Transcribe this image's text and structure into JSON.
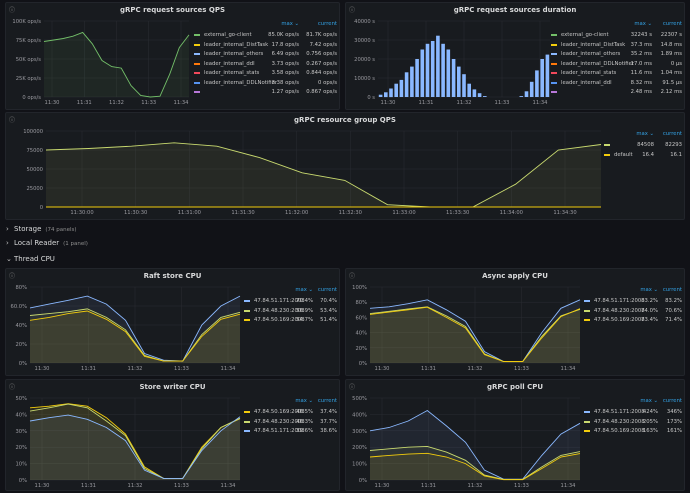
{
  "panels": {
    "qps": {
      "title": "gRPC request sources QPS",
      "legend_headers": {
        "max": "max ⌄",
        "current": "current"
      },
      "legend": [
        {
          "name": "external_go-client",
          "max": "85.0K ops/s",
          "current": "81.7K ops/s",
          "color": "#73bf69"
        },
        {
          "name": "leader_internal_DistTask",
          "max": "17.8 ops/s",
          "current": "7.42 ops/s",
          "color": "#f2cc0c"
        },
        {
          "name": "leader_internal_others",
          "max": "6.49 ops/s",
          "current": "0.756 ops/s",
          "color": "#8ab8ff"
        },
        {
          "name": "leader_internal_ddl",
          "max": "3.73 ops/s",
          "current": "0.267 ops/s",
          "color": "#ff780a"
        },
        {
          "name": "leader_internal_stats",
          "max": "3.58 ops/s",
          "current": "0.844 ops/s",
          "color": "#f2495c"
        },
        {
          "name": "leader_internal_DDLNotifier",
          "max": "3.38 ops/s",
          "current": "0 ops/s",
          "color": "#5794f2"
        },
        {
          "name": "",
          "max": "1.27 ops/s",
          "current": "0.867 ops/s",
          "color": "#b877d9"
        }
      ],
      "yticks": [
        "100K ops/s",
        "75K ops/s",
        "50K ops/s",
        "25K ops/s",
        "0 ops/s"
      ],
      "xticks": [
        "11:30",
        "11:31",
        "11:32",
        "11:33",
        "11:34"
      ]
    },
    "duration": {
      "title": "gRPC request sources duration",
      "legend_headers": {
        "max": "max ⌄",
        "current": "current"
      },
      "legend": [
        {
          "name": "external_go-client",
          "max": "32243 s",
          "current": "22307 s",
          "color": "#73bf69"
        },
        {
          "name": "leader_internal_DistTask",
          "max": "37.3 ms",
          "current": "14.8 ms",
          "color": "#f2cc0c"
        },
        {
          "name": "leader_internal_others",
          "max": "35.2 ms",
          "current": "1.89 ms",
          "color": "#8ab8ff"
        },
        {
          "name": "leader_internal_DDLNotifier",
          "max": "17.0 ms",
          "current": "0 µs",
          "color": "#ff780a"
        },
        {
          "name": "leader_internal_stats",
          "max": "11.6 ms",
          "current": "1.04 ms",
          "color": "#f2495c"
        },
        {
          "name": "leader_internal_ddl",
          "max": "8.32 ms",
          "current": "91.5 µs",
          "color": "#5794f2"
        },
        {
          "name": "",
          "max": "2.48 ms",
          "current": "2.12 ms",
          "color": "#b877d9"
        }
      ],
      "yticks": [
        "40000 s",
        "30000 s",
        "20000 s",
        "10000 s",
        "0 s"
      ],
      "xticks": [
        "11:30",
        "11:31",
        "11:32",
        "11:33",
        "11:34"
      ],
      "bars": [
        1200,
        2500,
        4500,
        7000,
        9000,
        13000,
        16000,
        20000,
        25000,
        28000,
        29500,
        32243,
        28000,
        25000,
        20000,
        16000,
        12000,
        7000,
        4000,
        2000,
        500,
        0,
        0,
        0,
        0,
        0,
        0,
        500,
        3000,
        8000,
        14000,
        20000,
        22307
      ]
    },
    "group": {
      "title": "gRPC resource group QPS",
      "legend_headers": {
        "max": "max ⌄",
        "current": "current"
      },
      "legend": [
        {
          "name": "",
          "max": "84508",
          "current": "82293",
          "color": "#c8d96f"
        },
        {
          "name": "default",
          "max": "16.4",
          "current": "16.1",
          "color": "#f2cc0c"
        }
      ],
      "yticks": [
        "100000",
        "75000",
        "50000",
        "25000",
        "0"
      ],
      "xticks": [
        "11:30:00",
        "11:30:30",
        "11:31:00",
        "11:31:30",
        "11:32:00",
        "11:32:30",
        "11:33:00",
        "11:33:30",
        "11:34:00",
        "11:34:30"
      ]
    },
    "raft": {
      "title": "Raft store CPU",
      "legend_headers": {
        "max": "max ⌄",
        "current": "current"
      },
      "legend": [
        {
          "name": "47.84.51.171:2008",
          "max": "70.4%",
          "current": "70.4%",
          "color": "#8ab8ff"
        },
        {
          "name": "47.84.48.230:2008",
          "max": "56.9%",
          "current": "53.4%",
          "color": "#c8d96f"
        },
        {
          "name": "47.84.50.169:2008",
          "max": "54.7%",
          "current": "51.4%",
          "color": "#f2cc0c"
        }
      ],
      "yticks": [
        "80%",
        "60.0%",
        "40%",
        "20%",
        "0%"
      ],
      "xticks": [
        "11:30",
        "11:31",
        "11:32",
        "11:33",
        "11:34"
      ]
    },
    "async": {
      "title": "Async apply CPU",
      "legend_headers": {
        "max": "max ⌄",
        "current": "current"
      },
      "legend": [
        {
          "name": "47.84.51.171:2008",
          "max": "83.2%",
          "current": "83.2%",
          "color": "#8ab8ff"
        },
        {
          "name": "47.84.48.230:2008",
          "max": "74.0%",
          "current": "70.6%",
          "color": "#c8d96f"
        },
        {
          "name": "47.84.50.169:2008",
          "max": "73.4%",
          "current": "71.4%",
          "color": "#f2cc0c"
        }
      ],
      "yticks": [
        "100%",
        "80%",
        "60%",
        "40%",
        "20%",
        "0%"
      ],
      "xticks": [
        "11:30",
        "11:31",
        "11:32",
        "11:33",
        "11:34"
      ]
    },
    "store": {
      "title": "Store writer CPU",
      "legend_headers": {
        "max": "max ⌄",
        "current": "current"
      },
      "legend": [
        {
          "name": "47.84.50.169:2008",
          "max": "46.5%",
          "current": "37.4%",
          "color": "#f2cc0c"
        },
        {
          "name": "47.84.48.230:2008",
          "max": "46.3%",
          "current": "37.7%",
          "color": "#c8d96f"
        },
        {
          "name": "47.84.51.171:2008",
          "max": "39.6%",
          "current": "38.6%",
          "color": "#8ab8ff"
        }
      ],
      "yticks": [
        "50%",
        "40%",
        "30%",
        "20%",
        "10%",
        "0%"
      ],
      "xticks": [
        "11:30",
        "11:31",
        "11:32",
        "11:33",
        "11:34"
      ]
    },
    "grpcpoll": {
      "title": "gRPC poll CPU",
      "legend_headers": {
        "max": "max ⌄",
        "current": "current"
      },
      "legend": [
        {
          "name": "47.84.51.171:2008",
          "max": "424%",
          "current": "346%",
          "color": "#8ab8ff"
        },
        {
          "name": "47.84.48.230:2008",
          "max": "205%",
          "current": "173%",
          "color": "#c8d96f"
        },
        {
          "name": "47.84.50.169:2008",
          "max": "163%",
          "current": "161%",
          "color": "#f2cc0c"
        }
      ],
      "yticks": [
        "500%",
        "400%",
        "300%",
        "200%",
        "100%",
        "0%"
      ],
      "xticks": [
        "11:30",
        "11:31",
        "11:32",
        "11:33",
        "11:34"
      ]
    }
  },
  "rows": {
    "storage": {
      "title": "Storage",
      "sub": "(74 panels)"
    },
    "local_reader": {
      "title": "Local Reader",
      "sub": "(1 panel)"
    },
    "thread_cpu": {
      "title": "Thread CPU"
    }
  },
  "chart_data": [
    {
      "type": "area",
      "title": "gRPC request sources QPS",
      "x": [
        "11:29:40",
        "11:30:00",
        "11:30:20",
        "11:30:40",
        "11:31:00",
        "11:31:20",
        "11:31:40",
        "11:32:00",
        "11:32:20",
        "11:32:40",
        "11:33:00",
        "11:33:20",
        "11:33:40",
        "11:34:00",
        "11:34:20",
        "11:34:40"
      ],
      "series": [
        {
          "name": "external_go-client",
          "values": [
            73000,
            75000,
            77000,
            80000,
            85000,
            70000,
            48000,
            40000,
            38000,
            15000,
            2000,
            0,
            1000,
            30000,
            65000,
            81700
          ]
        }
      ],
      "ylim": [
        0,
        100000
      ]
    },
    {
      "type": "bar",
      "title": "gRPC request sources duration",
      "series": [
        {
          "name": "external_go-client"
        }
      ],
      "ylim": [
        0,
        40000
      ]
    },
    {
      "type": "area",
      "title": "gRPC resource group QPS",
      "x": [
        "11:29:45",
        "11:30:00",
        "11:30:30",
        "11:31:00",
        "11:31:15",
        "11:31:30",
        "11:32:00",
        "11:32:30",
        "11:33:00",
        "11:33:15",
        "11:33:30",
        "11:34:00",
        "11:34:30",
        "11:34:45"
      ],
      "series": [
        {
          "name": "",
          "values": [
            75000,
            77000,
            80000,
            84508,
            80000,
            65000,
            45000,
            35000,
            3000,
            0,
            0,
            30000,
            75000,
            82293
          ]
        },
        {
          "name": "default",
          "values": [
            16,
            16,
            16,
            16.4,
            16,
            16,
            16,
            16,
            16,
            16,
            16,
            16,
            16,
            16.1
          ]
        }
      ],
      "ylim": [
        0,
        100000
      ]
    },
    {
      "type": "line",
      "title": "Raft store CPU",
      "x": [
        "11:29:40",
        "11:30:00",
        "11:30:30",
        "11:31:00",
        "11:31:30",
        "11:32:00",
        "11:32:30",
        "11:33:00",
        "11:33:30",
        "11:34:00",
        "11:34:30",
        "11:34:45"
      ],
      "series": [
        {
          "name": "47.84.51.171:2008",
          "values": [
            58,
            62,
            66,
            70.4,
            62,
            45,
            10,
            3,
            2,
            40,
            60,
            70.4
          ]
        },
        {
          "name": "47.84.48.230:2008",
          "values": [
            50,
            52,
            54,
            56.9,
            48,
            35,
            8,
            2,
            2,
            30,
            48,
            53.4
          ]
        },
        {
          "name": "47.84.50.169:2008",
          "values": [
            45,
            48,
            52,
            54.7,
            46,
            33,
            7,
            2,
            2,
            28,
            46,
            51.4
          ]
        }
      ],
      "ylim": [
        0,
        80
      ]
    },
    {
      "type": "line",
      "title": "Async apply CPU",
      "x": [
        "11:29:40",
        "11:30:00",
        "11:30:30",
        "11:31:00",
        "11:31:30",
        "11:32:00",
        "11:32:30",
        "11:33:00",
        "11:33:30",
        "11:34:00",
        "11:34:30",
        "11:34:45"
      ],
      "series": [
        {
          "name": "47.84.51.171:2008",
          "values": [
            72,
            74,
            78,
            83.2,
            70,
            55,
            15,
            2,
            2,
            40,
            72,
            83.2
          ]
        },
        {
          "name": "47.84.48.230:2008",
          "values": [
            65,
            68,
            71,
            74.0,
            62,
            48,
            12,
            2,
            2,
            35,
            62,
            70.6
          ]
        },
        {
          "name": "47.84.50.169:2008",
          "values": [
            64,
            67,
            70,
            73.4,
            60,
            46,
            11,
            2,
            2,
            33,
            61,
            71.4
          ]
        }
      ],
      "ylim": [
        0,
        100
      ]
    },
    {
      "type": "line",
      "title": "Store writer CPU",
      "x": [
        "11:29:40",
        "11:30:00",
        "11:30:30",
        "11:31:00",
        "11:31:30",
        "11:32:00",
        "11:32:30",
        "11:33:00",
        "11:33:30",
        "11:34:00",
        "11:34:30",
        "11:34:45"
      ],
      "series": [
        {
          "name": "47.84.50.169:2008",
          "values": [
            44,
            45,
            46.5,
            45,
            38,
            28,
            8,
            1,
            1,
            20,
            32,
            37.4
          ]
        },
        {
          "name": "47.84.48.230:2008",
          "values": [
            42,
            44,
            46.3,
            44,
            36,
            27,
            7,
            1,
            1,
            19,
            32,
            37.7
          ]
        },
        {
          "name": "47.84.51.171:2008",
          "values": [
            36,
            38,
            39.6,
            37,
            32,
            24,
            6,
            1,
            1,
            18,
            30,
            38.6
          ]
        }
      ],
      "ylim": [
        0,
        50
      ]
    },
    {
      "type": "line",
      "title": "gRPC poll CPU",
      "x": [
        "11:29:40",
        "11:30:00",
        "11:30:30",
        "11:31:00",
        "11:31:30",
        "11:32:00",
        "11:32:30",
        "11:33:00",
        "11:33:30",
        "11:34:00",
        "11:34:30",
        "11:34:45"
      ],
      "series": [
        {
          "name": "47.84.51.171:2008",
          "values": [
            300,
            320,
            360,
            424,
            330,
            230,
            60,
            5,
            5,
            150,
            280,
            346
          ]
        },
        {
          "name": "47.84.48.230:2008",
          "values": [
            180,
            190,
            200,
            205,
            170,
            120,
            30,
            3,
            3,
            80,
            150,
            173
          ]
        },
        {
          "name": "47.84.50.169:2008",
          "values": [
            140,
            150,
            158,
            163,
            140,
            100,
            25,
            2,
            2,
            70,
            140,
            161
          ]
        }
      ],
      "ylim": [
        0,
        500
      ]
    }
  ]
}
